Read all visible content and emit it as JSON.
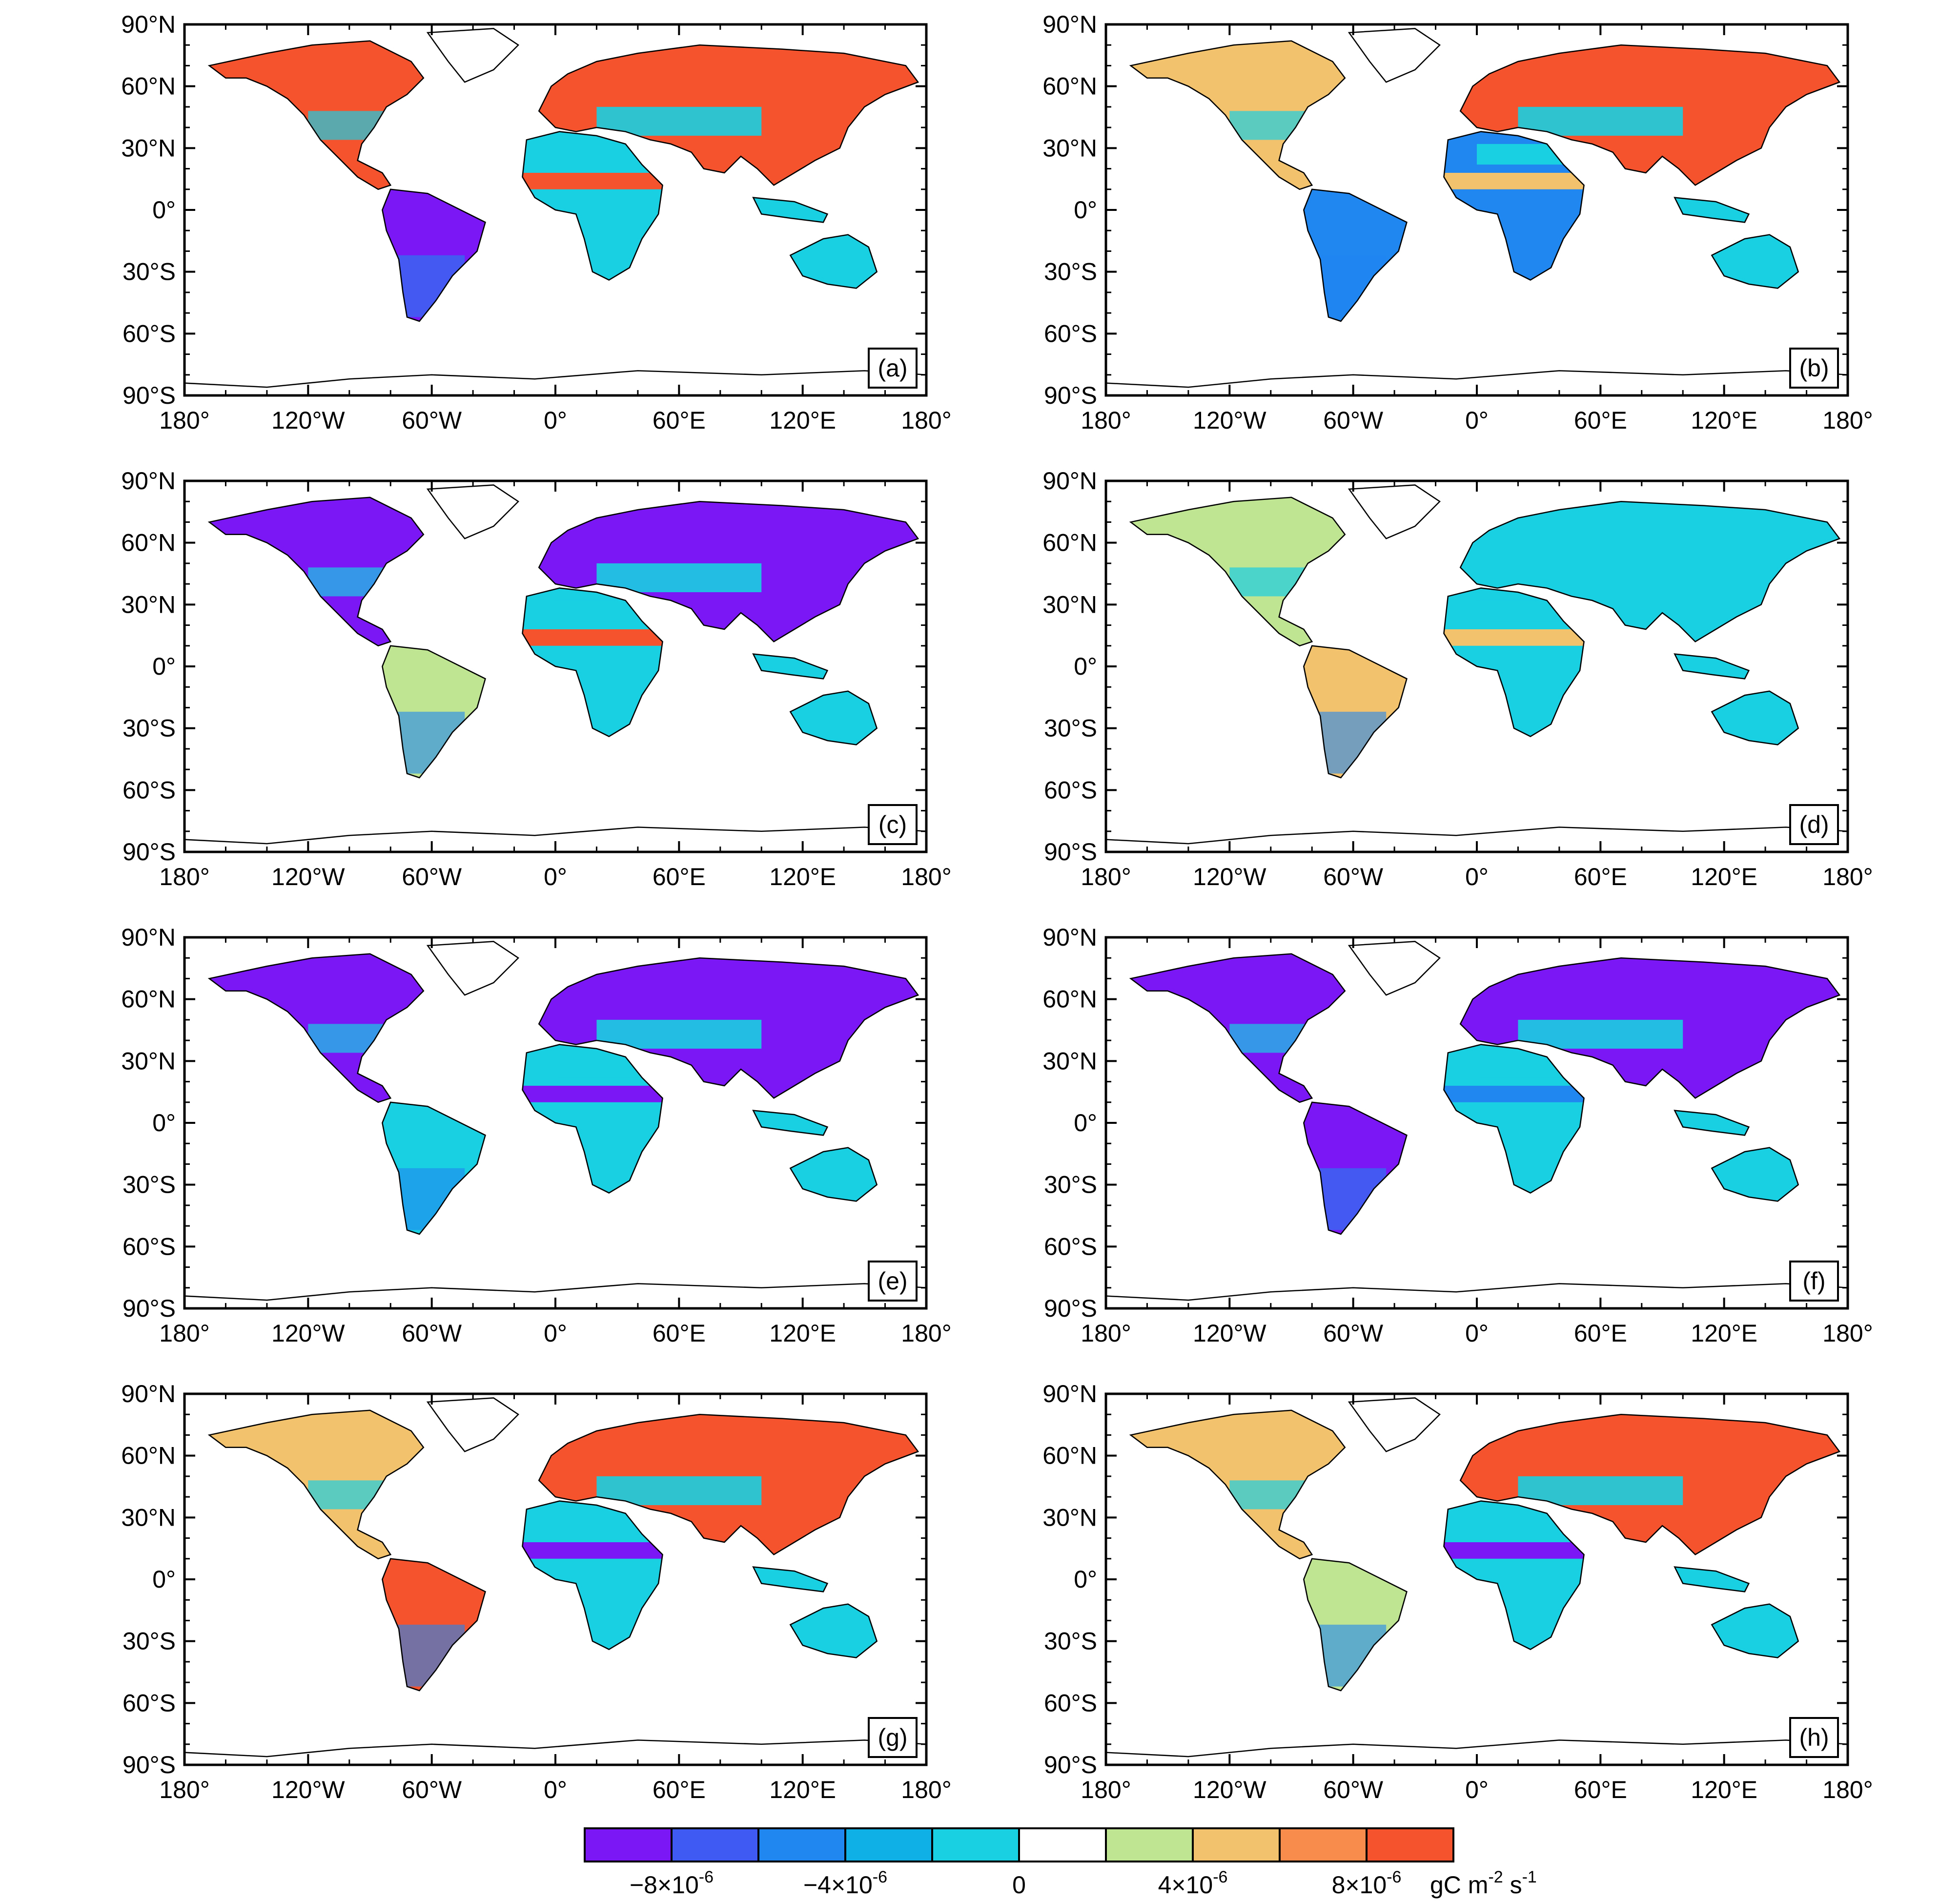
{
  "figure": {
    "panels": [
      {
        "label": "(a)"
      },
      {
        "label": "(b)"
      },
      {
        "label": "(c)"
      },
      {
        "label": "(d)"
      },
      {
        "label": "(e)"
      },
      {
        "label": "(f)"
      },
      {
        "label": "(g)"
      },
      {
        "label": "(h)"
      }
    ],
    "axes": {
      "lat_ticks": [
        "90°N",
        "60°N",
        "30°N",
        "0°",
        "30°S",
        "60°S",
        "90°S"
      ],
      "lon_ticks": [
        "180°",
        "120°W",
        "60°W",
        "0°",
        "60°E",
        "120°E",
        "180°"
      ],
      "lon_ticks_alt": [
        "180°",
        "120°W",
        "60°W",
        "0°",
        "60°E",
        "120°E",
        "180°"
      ],
      "lat_range": [
        -90,
        90
      ],
      "lon_range": [
        -180,
        180
      ]
    },
    "colorbar": {
      "colors": [
        "#7b16f5",
        "#3f5af2",
        "#2086f0",
        "#0fb0e6",
        "#19cfe2",
        "#ffffff",
        "#bfe592",
        "#f3c26d",
        "#f78c4c",
        "#f4532d"
      ],
      "labels": [
        {
          "base": "−8×10",
          "exp": "-6"
        },
        {
          "base": "−4×10",
          "exp": "-6"
        },
        {
          "base": "0",
          "exp": ""
        },
        {
          "base": "4×10",
          "exp": "-6"
        },
        {
          "base": "8×10",
          "exp": "-6"
        }
      ],
      "unit": {
        "text": "gC m",
        "exp1": "-2",
        "mid": " s",
        "exp2": "-1"
      }
    },
    "map_colors": {
      "land_outline": "#000000",
      "negative_strong": "#7b16f5",
      "negative_mid": "#2086f0",
      "negative_weak": "#19cfe2",
      "positive_weak": "#bfe592",
      "positive_mid": "#f3c26d",
      "positive_strong": "#f4532d"
    }
  }
}
